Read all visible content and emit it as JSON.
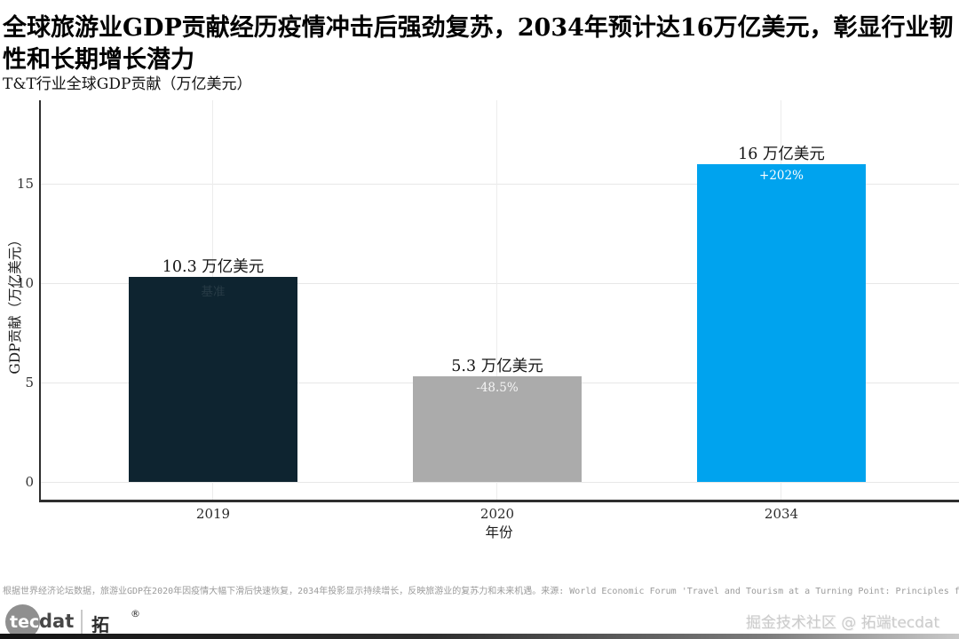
{
  "header": {
    "title": "全球旅游业GDP贡献经历疫情冲击后强劲复苏，2034年预计达16万亿美元，彰显行业韧性和长期增长潜力",
    "subtitle": "T&T行业全球GDP贡献（万亿美元）"
  },
  "chart_data": {
    "type": "bar",
    "title": "T&T行业全球GDP贡献（万亿美元）",
    "categories": [
      "2019",
      "2020",
      "2034"
    ],
    "values": [
      10.3,
      5.3,
      16
    ],
    "bar_labels": [
      "10.3 万亿美元",
      "5.3 万亿美元",
      "16 万亿美元"
    ],
    "bar_annotations": [
      "基准",
      "-48.5%",
      "+202%"
    ],
    "bar_colors": [
      "#0E2430",
      "#ABABAB",
      "#00A3EE"
    ],
    "bar_annotation_colors": [
      "rgba(255,255,255,0.10)",
      "rgba(255,255,255,0.88)",
      "#ffffff"
    ],
    "xlabel": "年份",
    "ylabel": "GDP贡献（万亿美元）",
    "yticks": [
      0,
      5,
      10,
      15
    ],
    "ylim": [
      0,
      19.2
    ],
    "grid": true,
    "legend": false
  },
  "footer": {
    "note": "根据世界经济论坛数据，旅游业GDP在2020年因疫情大幅下滑后快速恢复，2034年投影显示持续增长，反映旅游业的复苏力和未来机遇。来源: World Economic Forum 'Travel and Tourism at a Turning Point: Principles for Transformative Growth'",
    "logo": {
      "circle_text": "tec",
      "suffix": "dat",
      "brand": "拓端",
      "registered": "®"
    },
    "credit": "掘金技术社区 @ 拓端tecdat"
  }
}
